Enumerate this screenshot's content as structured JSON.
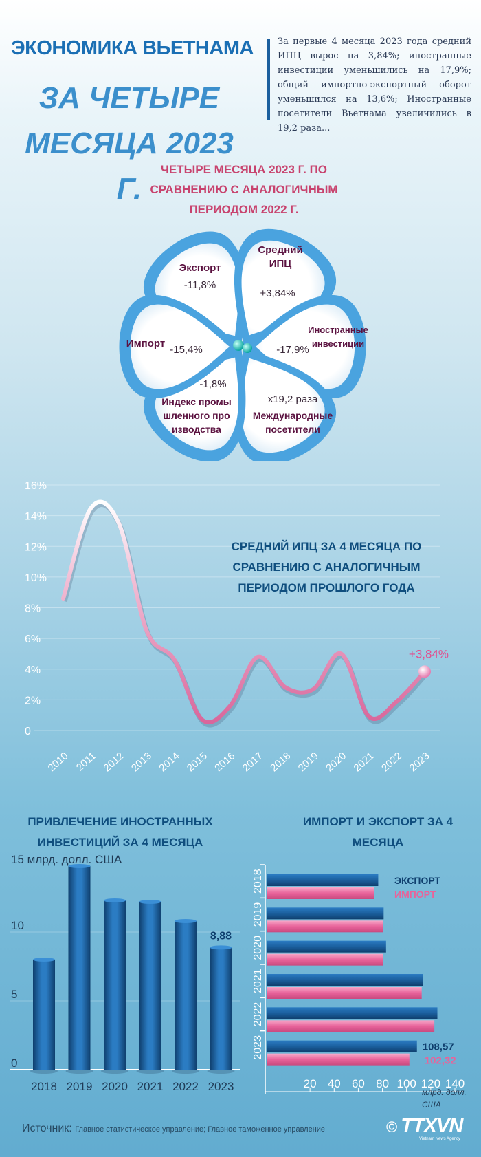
{
  "header": {
    "title_line1": "ЭКОНОМИКА ВЬЕТНАМА",
    "title_line2": "ЗА ЧЕТЫРЕ МЕСЯЦА 2023 Г.",
    "summary": "За первые 4 месяца 2023 года средний ИПЦ вырос на 3,84%; иностранные инвестиции уменьшились на 17,9%; общий импортно-экспортный оборот уменьшился на 13,6%; Иностранные посетители Вьетнама увеличились в 19,2 раза..."
  },
  "flower": {
    "title": "ЧЕТЫРЕ МЕСЯЦА 2023 Г. ПО СРАВНЕНИЮ С АНАЛОГИЧНЫМ ПЕРИОДОМ 2022 Г.",
    "items": [
      {
        "label": "Экспорт",
        "value": "-11,8%"
      },
      {
        "label": "Средний ИПЦ",
        "value": "+3,84%"
      },
      {
        "label": "Иностранные инвестиции",
        "value": "-17,9%"
      },
      {
        "label": "Международные посетители",
        "value": "x19,2 раза"
      },
      {
        "label": "Индекс промышленного производства",
        "value": "-1,8%"
      },
      {
        "label": "Импорт",
        "value": "-15,4%"
      }
    ],
    "colors": {
      "petal_outline": "#4aa3df",
      "petal_fill": "#ffffff",
      "label": "#5b1240"
    }
  },
  "chart_data": [
    {
      "type": "line",
      "title": "СРЕДНИЙ ИПЦ ЗА 4 МЕСЯЦА ПО СРАВНЕНИЮ С АНАЛОГИЧНЫМ ПЕРИОДОМ ПРОШЛОГО ГОДА",
      "x": [
        "2010",
        "2011",
        "2012",
        "2013",
        "2014",
        "2015",
        "2016",
        "2017",
        "2018",
        "2019",
        "2020",
        "2021",
        "2022",
        "2023"
      ],
      "values": [
        8.6,
        14.5,
        13.5,
        6.5,
        4.6,
        0.7,
        1.6,
        4.8,
        2.8,
        2.7,
        5.0,
        0.9,
        1.9,
        3.84
      ],
      "ytick_labels": [
        "0",
        "2%",
        "4%",
        "6%",
        "8%",
        "10%",
        "12%",
        "14%",
        "16%"
      ],
      "ylim": [
        0,
        16
      ],
      "annotation": "+3,84%",
      "colors": {
        "line": "#d9669b",
        "marker": "#e57cb0"
      }
    },
    {
      "type": "bar",
      "title": "ПРИВЛЕЧЕНИЕ ИНОСТРАННЫХ ИНВЕСТИЦИЙ ЗА 4 МЕСЯЦА",
      "ylabel": "15 млрд. долл. США",
      "categories": [
        "2018",
        "2019",
        "2020",
        "2021",
        "2022",
        "2023"
      ],
      "values": [
        8.0,
        14.8,
        12.3,
        12.2,
        10.8,
        8.88
      ],
      "yticks": [
        "0",
        "5",
        "10"
      ],
      "ylim": [
        0,
        15
      ],
      "annotation": "8,88",
      "colors": {
        "bar": "#1b5f9e"
      }
    },
    {
      "type": "bar",
      "orientation": "horizontal",
      "title": "ИМПОРТ И ЭКСПОРТ ЗА 4 МЕСЯЦА",
      "unit_label": "млрд. долл. США",
      "categories": [
        "2018",
        "2019",
        "2020",
        "2021",
        "2022",
        "2023"
      ],
      "series": [
        {
          "name": "ЭКСПОРТ",
          "values": [
            76.5,
            81.0,
            83.0,
            113.5,
            125.5,
            108.57
          ]
        },
        {
          "name": "ИМПОРТ",
          "values": [
            73.0,
            80.5,
            80.5,
            112.5,
            123.0,
            102.32
          ]
        }
      ],
      "xticks": [
        "20",
        "40",
        "60",
        "80",
        "100",
        "120",
        "140"
      ],
      "xlim": [
        0,
        140
      ],
      "annotations": [
        "108,57",
        "102,32"
      ],
      "colors": {
        "export": "#1b5f9e",
        "import": "#e8639a"
      }
    }
  ],
  "footer": {
    "source_label": "Источник:",
    "source_text": "Главное статистическое управление; Главное таможенное управление",
    "logo_copyright": "©",
    "logo": "TTXVN",
    "logo_sub": "Vietnam News Agency"
  }
}
